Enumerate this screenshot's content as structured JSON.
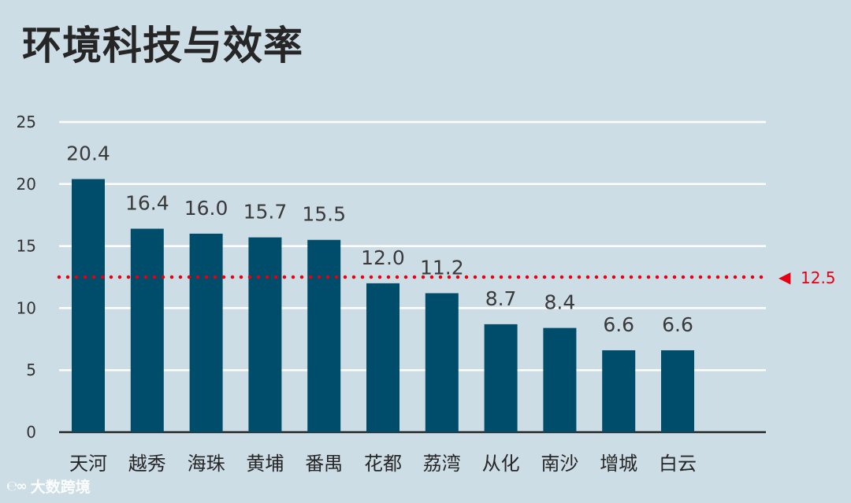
{
  "title": "环境科技与效率",
  "watermark": {
    "text": "大数跨境",
    "icon": "brand-logo-icon"
  },
  "colors": {
    "bar": "#004d6b",
    "grid": "#ffffff",
    "reference": "#e60012",
    "background": "#cddde6"
  },
  "chart_data": {
    "type": "bar",
    "title": "环境科技与效率",
    "xlabel": "",
    "ylabel": "",
    "categories": [
      "天河",
      "越秀",
      "海珠",
      "黄埔",
      "番禺",
      "花都",
      "荔湾",
      "从化",
      "南沙",
      "增城",
      "白云"
    ],
    "values": [
      20.4,
      16.4,
      16.0,
      15.7,
      15.5,
      12.0,
      11.2,
      8.7,
      8.4,
      6.6,
      6.6
    ],
    "value_labels": [
      "20.4",
      "16.4",
      "16.0",
      "15.7",
      "15.5",
      "12.0",
      "11.2",
      "8.7",
      "8.4",
      "6.6",
      "6.6"
    ],
    "ylim": [
      0,
      25
    ],
    "yticks": [
      0,
      5,
      10,
      15,
      20,
      25
    ],
    "grid": true,
    "reference_line": {
      "value": 12.5,
      "label": "12.5",
      "style": "dotted",
      "marker": "◀"
    }
  }
}
